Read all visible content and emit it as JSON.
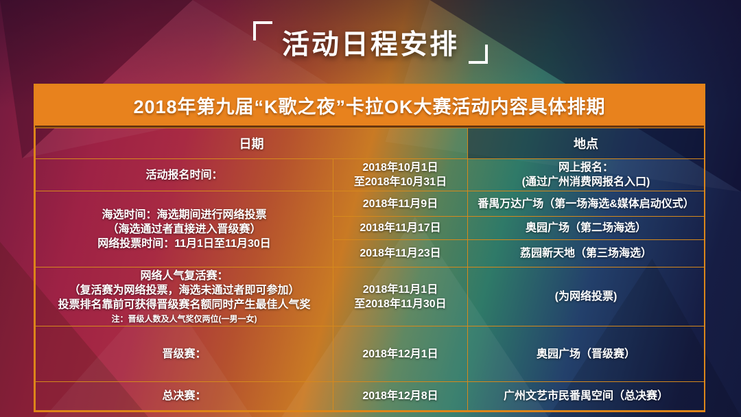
{
  "page_title": "活动日程安排",
  "table": {
    "title": "2018年第九届“K歌之夜”卡拉OK大赛活动内容具体排期",
    "columns": {
      "date": "日期",
      "location": "地点"
    },
    "sections": [
      {
        "label_lines": [
          "活动报名时间："
        ],
        "note": "",
        "entries": [
          {
            "date_lines": [
              "2018年10月1日",
              "至2018年10月31日"
            ],
            "location_lines": [
              "网上报名：",
              "(通过广州消费网报名入口)"
            ]
          }
        ]
      },
      {
        "label_lines": [
          "海选时间：海选期间进行网络投票",
          "（海选通过者直接进入晋级赛）",
          "网络投票时间：11月1日至11月30日"
        ],
        "note": "",
        "entries": [
          {
            "date_lines": [
              "2018年11月9日"
            ],
            "location_lines": [
              "番禺万达广场（第一场海选&媒体启动仪式）"
            ]
          },
          {
            "date_lines": [
              "2018年11月17日"
            ],
            "location_lines": [
              "奥园广场（第二场海选）"
            ]
          },
          {
            "date_lines": [
              "2018年11月23日"
            ],
            "location_lines": [
              "荔园新天地（第三场海选）"
            ]
          }
        ]
      },
      {
        "label_lines": [
          "网络人气复活赛：",
          "（复活赛为网络投票，海选未通过者即可参加）",
          "投票排名靠前可获得晋级赛名额同时产生最佳人气奖"
        ],
        "note": "注：晋级人数及人气奖仅两位(一男一女)",
        "entries": [
          {
            "date_lines": [
              "2018年11月1日",
              "至2018年11月30日"
            ],
            "location_lines": [
              "(为网络投票)"
            ]
          }
        ]
      },
      {
        "label_lines": [
          "晋级赛："
        ],
        "note": "",
        "entries": [
          {
            "date_lines": [
              "2018年12月1日"
            ],
            "location_lines": [
              "奥园广场（晋级赛）"
            ]
          }
        ]
      },
      {
        "label_lines": [
          "总决赛："
        ],
        "note": "",
        "entries": [
          {
            "date_lines": [
              "2018年12月8日"
            ],
            "location_lines": [
              "广州文艺市民番禺空间（总决赛）"
            ]
          }
        ]
      }
    ]
  },
  "colors": {
    "accent_orange": "#e8821d",
    "grid_border": "#d6891c",
    "bg_left_crimson": "#9e2245",
    "bg_center_orange": "#c97a24",
    "bg_teal": "#2f7a68",
    "bg_right_navy": "#141a3e",
    "text": "#ffffff"
  }
}
